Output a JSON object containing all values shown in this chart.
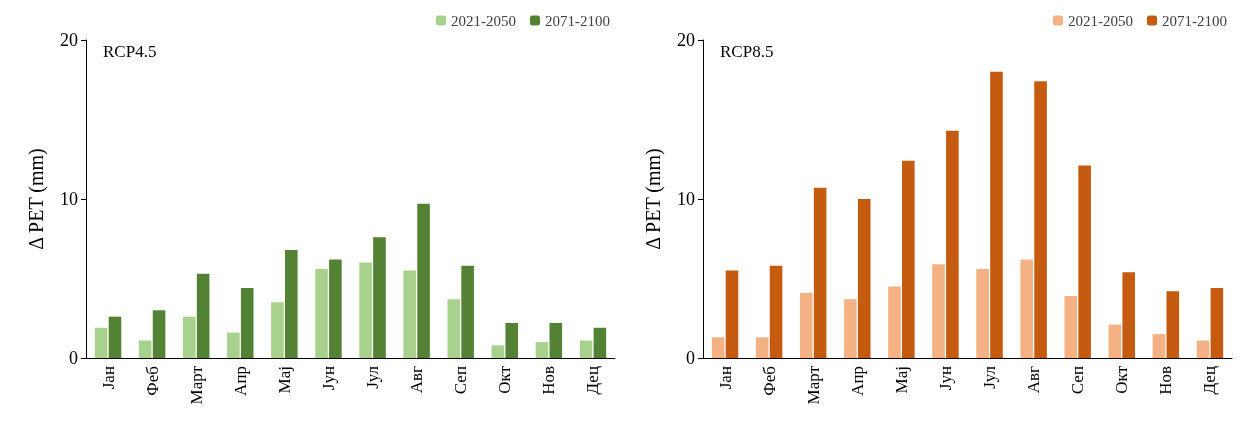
{
  "chart_data": [
    {
      "type": "bar",
      "title": "RCP4.5",
      "ylabel": "Δ PET (mm)",
      "categories": [
        "Јан",
        "Феб",
        "Март",
        "Апр",
        "Мај",
        "Јун",
        "Јул",
        "Авг",
        "Сеп",
        "Окт",
        "Нов",
        "Дец"
      ],
      "series": [
        {
          "name": "2021-2050",
          "color": "#a9d18e",
          "values": [
            1.9,
            1.1,
            2.6,
            1.6,
            3.5,
            5.6,
            6.0,
            5.5,
            3.7,
            0.8,
            1.0,
            1.1
          ]
        },
        {
          "name": "2071-2100",
          "color": "#548235",
          "values": [
            2.6,
            3.0,
            5.3,
            4.4,
            6.8,
            6.2,
            7.6,
            9.7,
            5.8,
            2.2,
            2.2,
            1.9
          ]
        }
      ],
      "ylim": [
        0,
        20
      ],
      "yticks": [
        0,
        10,
        20
      ],
      "grid": false,
      "legend": "top right"
    },
    {
      "type": "bar",
      "title": "RCP8.5",
      "ylabel": "Δ PET (mm)",
      "categories": [
        "Јан",
        "Феб",
        "Март",
        "Апр",
        "Мај",
        "Јун",
        "Јул",
        "Авг",
        "Сеп",
        "Окт",
        "Нов",
        "Дец"
      ],
      "series": [
        {
          "name": "2021-2050",
          "color": "#f4b183",
          "values": [
            1.3,
            1.3,
            4.1,
            3.7,
            4.5,
            5.9,
            5.6,
            6.2,
            3.9,
            2.1,
            1.5,
            1.1
          ]
        },
        {
          "name": "2071-2100",
          "color": "#c55a11",
          "values": [
            5.5,
            5.8,
            10.7,
            10.0,
            12.4,
            14.3,
            18.0,
            17.4,
            12.1,
            5.4,
            4.2,
            4.4
          ]
        }
      ],
      "ylim": [
        0,
        20
      ],
      "yticks": [
        0,
        10,
        20
      ],
      "grid": false,
      "legend": "top right"
    }
  ]
}
